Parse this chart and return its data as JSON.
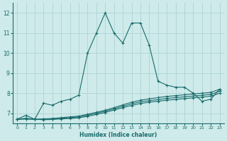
{
  "title": "",
  "xlabel": "Humidex (Indice chaleur)",
  "background_color": "#ceeaea",
  "line_color": "#1a6b6b",
  "grid_color": "#aacfcf",
  "xlim": [
    -0.5,
    23.5
  ],
  "ylim": [
    6.5,
    12.5
  ],
  "yticks": [
    7,
    8,
    9,
    10,
    11,
    12
  ],
  "xticks": [
    0,
    1,
    2,
    3,
    4,
    5,
    6,
    7,
    8,
    9,
    10,
    11,
    12,
    13,
    14,
    15,
    16,
    17,
    18,
    19,
    20,
    21,
    22,
    23
  ],
  "series1_x": [
    0,
    1,
    2,
    3,
    4,
    5,
    6,
    7,
    8,
    9,
    10,
    11,
    12,
    13,
    14,
    15,
    16,
    17,
    18,
    19,
    20,
    21,
    22,
    23
  ],
  "series1_y": [
    6.7,
    6.9,
    6.7,
    7.5,
    7.4,
    7.6,
    7.7,
    7.9,
    10.0,
    11.0,
    12.0,
    11.0,
    10.5,
    11.5,
    11.5,
    10.4,
    8.6,
    8.4,
    8.3,
    8.3,
    8.0,
    7.6,
    7.7,
    8.2
  ],
  "series2_x": [
    0,
    1,
    2,
    3,
    4,
    5,
    6,
    7,
    8,
    9,
    10,
    11,
    12,
    13,
    14,
    15,
    16,
    17,
    18,
    19,
    20,
    21,
    22,
    23
  ],
  "series2_y": [
    6.7,
    6.75,
    6.7,
    6.72,
    6.74,
    6.78,
    6.82,
    6.86,
    6.95,
    7.05,
    7.15,
    7.28,
    7.42,
    7.55,
    7.65,
    7.72,
    7.78,
    7.84,
    7.88,
    7.92,
    7.96,
    8.0,
    8.04,
    8.2
  ],
  "series3_x": [
    0,
    1,
    2,
    3,
    4,
    5,
    6,
    7,
    8,
    9,
    10,
    11,
    12,
    13,
    14,
    15,
    16,
    17,
    18,
    19,
    20,
    21,
    22,
    23
  ],
  "series3_y": [
    6.7,
    6.73,
    6.7,
    6.7,
    6.72,
    6.75,
    6.78,
    6.82,
    6.9,
    7.0,
    7.1,
    7.22,
    7.35,
    7.47,
    7.57,
    7.63,
    7.68,
    7.74,
    7.78,
    7.82,
    7.86,
    7.9,
    7.94,
    8.1
  ],
  "series4_x": [
    0,
    1,
    2,
    3,
    4,
    5,
    6,
    7,
    8,
    9,
    10,
    11,
    12,
    13,
    14,
    15,
    16,
    17,
    18,
    19,
    20,
    21,
    22,
    23
  ],
  "series4_y": [
    6.7,
    6.71,
    6.7,
    6.68,
    6.69,
    6.72,
    6.74,
    6.77,
    6.85,
    6.94,
    7.04,
    7.16,
    7.28,
    7.39,
    7.49,
    7.55,
    7.6,
    7.65,
    7.69,
    7.73,
    7.77,
    7.81,
    7.85,
    8.0
  ]
}
